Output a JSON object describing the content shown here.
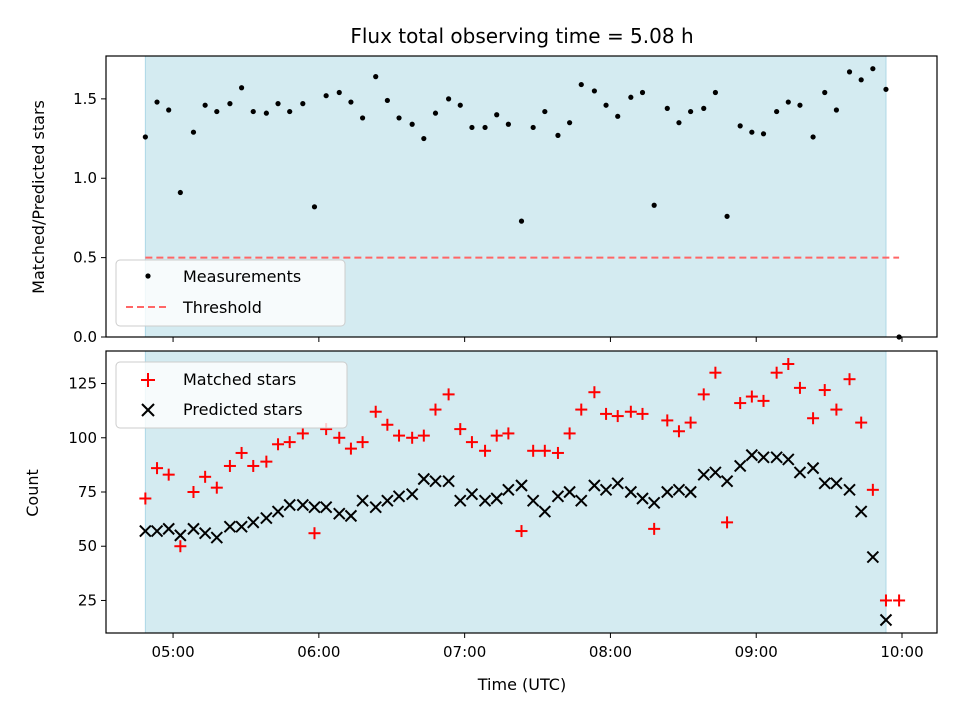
{
  "chart_data": {
    "title": "Flux total observing time = 5.08 h",
    "xlabel": "Time (UTC)",
    "x_unit": "hours UTC (decimal)",
    "xlim": [
      4.54,
      10.24
    ],
    "xticks": [
      {
        "value": 5.0,
        "label": "05:00"
      },
      {
        "value": 6.0,
        "label": "06:00"
      },
      {
        "value": 7.0,
        "label": "07:00"
      },
      {
        "value": 8.0,
        "label": "08:00"
      },
      {
        "value": 9.0,
        "label": "09:00"
      },
      {
        "value": 10.0,
        "label": "10:00"
      }
    ],
    "observing_window": {
      "start": 4.81,
      "end": 9.89,
      "color": "#add8e6"
    },
    "colors": {
      "measurements": "#000000",
      "threshold": "#ff6666",
      "matched": "#ff0000",
      "predicted": "#000000",
      "window_fill": "#d4ebf1"
    },
    "panels": [
      {
        "type": "scatter",
        "ylabel": "Matched/Predicted stars",
        "ylim": [
          0.0,
          1.77
        ],
        "yticks": [
          {
            "value": 0.0,
            "label": "0.0"
          },
          {
            "value": 0.5,
            "label": "0.5"
          },
          {
            "value": 1.0,
            "label": "1.0"
          },
          {
            "value": 1.5,
            "label": "1.5"
          }
        ],
        "legend": {
          "position": "lower-left",
          "measurements_label": "Measurements",
          "threshold_label": "Threshold"
        },
        "threshold": {
          "value": 0.5,
          "x_range": [
            4.81,
            9.98
          ]
        },
        "series": [
          {
            "name": "Measurements",
            "marker": "dot",
            "x": [
              4.81,
              4.89,
              4.97,
              5.05,
              5.14,
              5.22,
              5.3,
              5.39,
              5.47,
              5.55,
              5.64,
              5.72,
              5.8,
              5.89,
              5.97,
              6.05,
              6.14,
              6.22,
              6.3,
              6.39,
              6.47,
              6.55,
              6.64,
              6.72,
              6.8,
              6.89,
              6.97,
              7.05,
              7.14,
              7.22,
              7.3,
              7.39,
              7.47,
              7.55,
              7.64,
              7.72,
              7.8,
              7.89,
              7.97,
              8.05,
              8.14,
              8.22,
              8.3,
              8.39,
              8.47,
              8.55,
              8.64,
              8.72,
              8.8,
              8.89,
              8.97,
              9.05,
              9.14,
              9.22,
              9.3,
              9.39,
              9.47,
              9.55,
              9.64,
              9.72,
              9.8,
              9.89,
              9.98
            ],
            "y": [
              1.26,
              1.48,
              1.43,
              0.91,
              1.29,
              1.46,
              1.42,
              1.47,
              1.57,
              1.42,
              1.41,
              1.47,
              1.42,
              1.47,
              0.82,
              1.52,
              1.54,
              1.48,
              1.38,
              1.64,
              1.49,
              1.38,
              1.34,
              1.25,
              1.41,
              1.5,
              1.46,
              1.32,
              1.32,
              1.4,
              1.34,
              0.73,
              1.32,
              1.42,
              1.27,
              1.35,
              1.59,
              1.55,
              1.46,
              1.39,
              1.51,
              1.54,
              0.83,
              1.44,
              1.35,
              1.42,
              1.44,
              1.54,
              0.76,
              1.33,
              1.29,
              1.28,
              1.42,
              1.48,
              1.46,
              1.26,
              1.54,
              1.43,
              1.67,
              1.62,
              1.69,
              1.56,
              0.0
            ]
          }
        ]
      },
      {
        "type": "scatter",
        "ylabel": "Count",
        "ylim": [
          10,
          140
        ],
        "yticks": [
          {
            "value": 25,
            "label": "25"
          },
          {
            "value": 50,
            "label": "50"
          },
          {
            "value": 75,
            "label": "75"
          },
          {
            "value": 100,
            "label": "100"
          },
          {
            "value": 125,
            "label": "125"
          }
        ],
        "legend": {
          "position": "upper-left",
          "matched_label": "Matched stars",
          "predicted_label": "Predicted stars"
        },
        "series": [
          {
            "name": "Matched stars",
            "marker": "plus",
            "x": [
              4.81,
              4.89,
              4.97,
              5.05,
              5.14,
              5.22,
              5.3,
              5.39,
              5.47,
              5.55,
              5.64,
              5.72,
              5.8,
              5.89,
              5.97,
              6.05,
              6.14,
              6.22,
              6.3,
              6.39,
              6.47,
              6.55,
              6.64,
              6.72,
              6.8,
              6.89,
              6.97,
              7.05,
              7.14,
              7.22,
              7.3,
              7.39,
              7.47,
              7.55,
              7.64,
              7.72,
              7.8,
              7.89,
              7.97,
              8.05,
              8.14,
              8.22,
              8.3,
              8.39,
              8.47,
              8.55,
              8.64,
              8.72,
              8.8,
              8.89,
              8.97,
              9.05,
              9.14,
              9.22,
              9.3,
              9.39,
              9.47,
              9.55,
              9.64,
              9.72,
              9.8,
              9.89,
              9.98
            ],
            "y": [
              72,
              86,
              83,
              50,
              75,
              82,
              77,
              87,
              93,
              87,
              89,
              97,
              98,
              102,
              56,
              104,
              100,
              95,
              98,
              112,
              106,
              101,
              100,
              101,
              113,
              120,
              104,
              98,
              94,
              101,
              102,
              57,
              94,
              94,
              93,
              102,
              113,
              121,
              111,
              110,
              112,
              111,
              58,
              108,
              103,
              107,
              120,
              130,
              61,
              116,
              119,
              117,
              130,
              134,
              123,
              109,
              122,
              113,
              127,
              107,
              76,
              25,
              25
            ]
          },
          {
            "name": "Predicted stars",
            "marker": "x",
            "x": [
              4.81,
              4.89,
              4.97,
              5.05,
              5.14,
              5.22,
              5.3,
              5.39,
              5.47,
              5.55,
              5.64,
              5.72,
              5.8,
              5.89,
              5.97,
              6.05,
              6.14,
              6.22,
              6.3,
              6.39,
              6.47,
              6.55,
              6.64,
              6.72,
              6.8,
              6.89,
              6.97,
              7.05,
              7.14,
              7.22,
              7.3,
              7.39,
              7.47,
              7.55,
              7.64,
              7.72,
              7.8,
              7.89,
              7.97,
              8.05,
              8.14,
              8.22,
              8.3,
              8.39,
              8.47,
              8.55,
              8.64,
              8.72,
              8.8,
              8.89,
              8.97,
              9.05,
              9.14,
              9.22,
              9.3,
              9.39,
              9.47,
              9.55,
              9.64,
              9.72,
              9.8,
              9.89
            ],
            "y": [
              57,
              57,
              58,
              55,
              58,
              56,
              54,
              59,
              59,
              61,
              63,
              66,
              69,
              69,
              68,
              68,
              65,
              64,
              71,
              68,
              71,
              73,
              74,
              81,
              80,
              80,
              71,
              74,
              71,
              72,
              76,
              78,
              71,
              66,
              73,
              75,
              71,
              78,
              76,
              79,
              75,
              72,
              70,
              75,
              76,
              75,
              83,
              84,
              80,
              87,
              92,
              91,
              91,
              90,
              84,
              86,
              79,
              79,
              76,
              66,
              45,
              16
            ]
          }
        ]
      }
    ]
  }
}
